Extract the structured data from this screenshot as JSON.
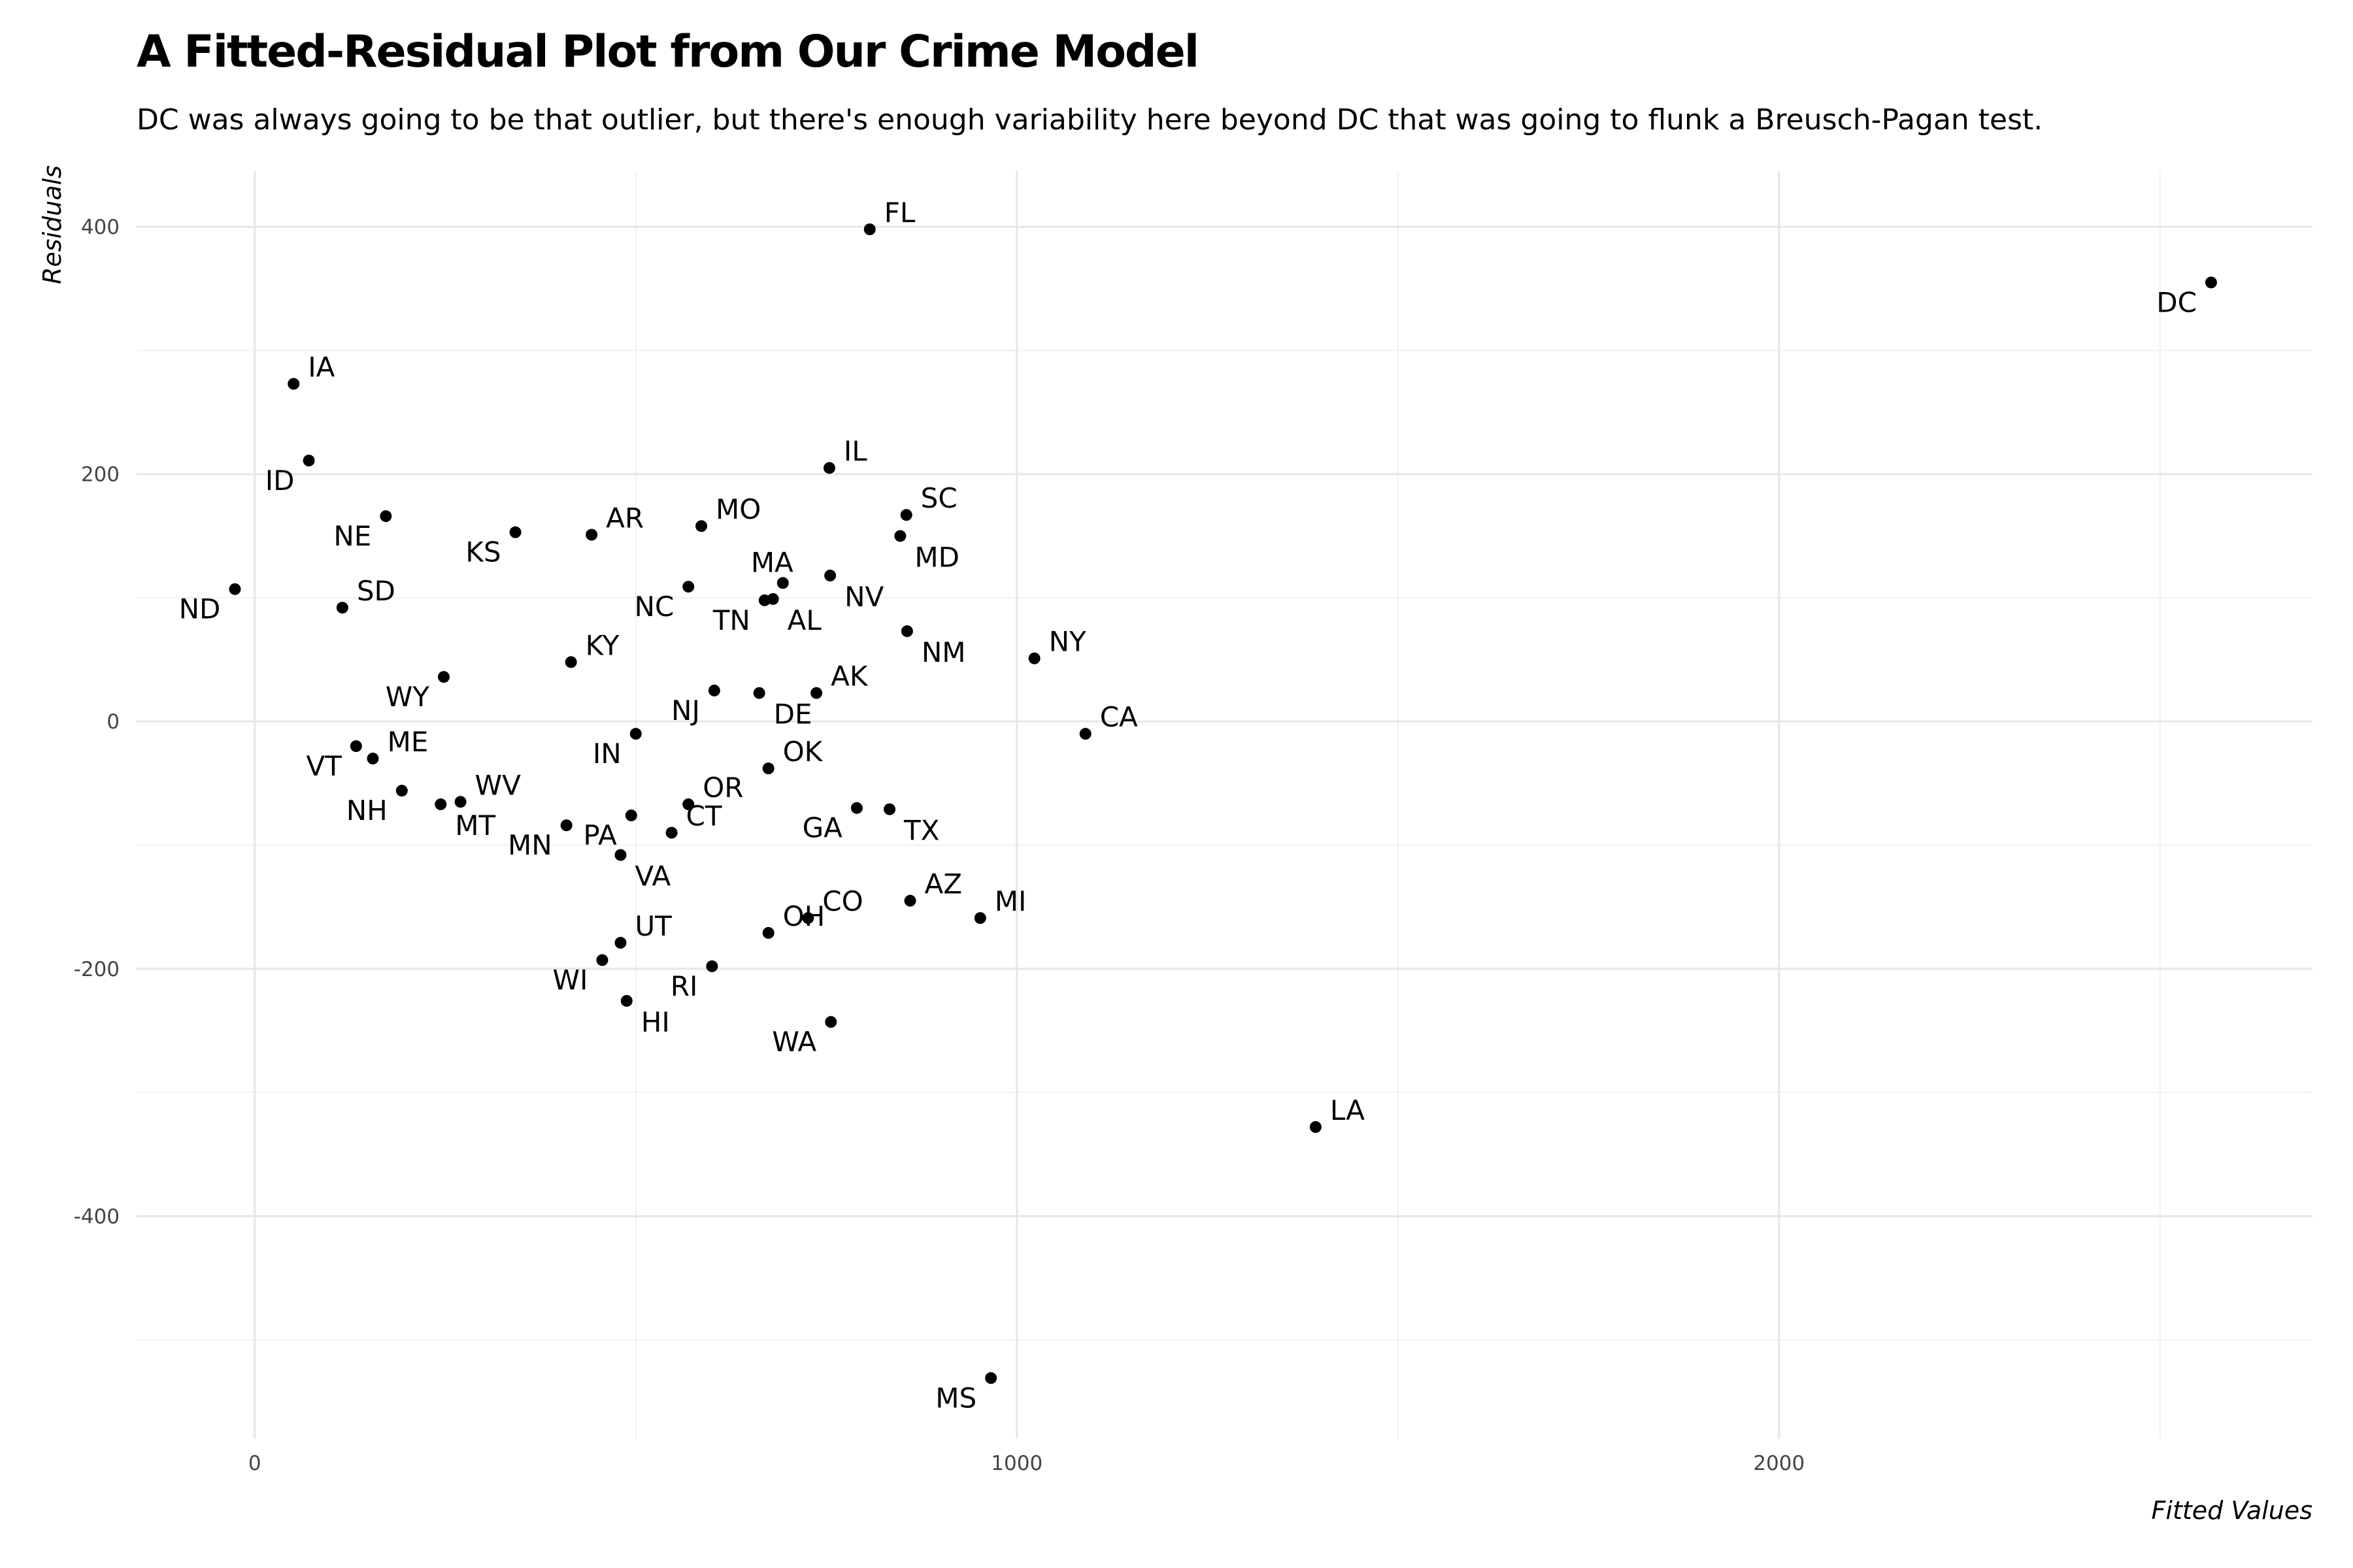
{
  "chart_data": {
    "type": "scatter",
    "title": "A Fitted-Residual Plot from Our Crime Model",
    "subtitle": "DC was always going to be that outlier, but there's enough variability here beyond DC that was going to flunk a Breusch-Pagan test.",
    "xlabel": "Fitted Values",
    "ylabel": "Residuals",
    "xlim": [
      -155,
      2700
    ],
    "ylim": [
      -580,
      445
    ],
    "x_ticks": [
      0,
      1000,
      2000
    ],
    "x_minor_ticks": [
      500,
      1500,
      2500
    ],
    "y_ticks": [
      400,
      200,
      0,
      -200,
      -400
    ],
    "y_minor_ticks": [
      300,
      100,
      -100,
      -300,
      -500
    ],
    "grid": true,
    "points": [
      {
        "label": "FL",
        "x": 807,
        "y": 398,
        "pos": "right"
      },
      {
        "label": "DC",
        "x": 2567,
        "y": 355,
        "pos": "left"
      },
      {
        "label": "IA",
        "x": 51,
        "y": 273,
        "pos": "right"
      },
      {
        "label": "ID",
        "x": 71,
        "y": 211,
        "pos": "left"
      },
      {
        "label": "IL",
        "x": 754,
        "y": 205,
        "pos": "right"
      },
      {
        "label": "SC",
        "x": 855,
        "y": 167,
        "pos": "right"
      },
      {
        "label": "NE",
        "x": 172,
        "y": 166,
        "pos": "left"
      },
      {
        "label": "MO",
        "x": 586,
        "y": 158,
        "pos": "right"
      },
      {
        "label": "KS",
        "x": 342,
        "y": 153,
        "pos": "left"
      },
      {
        "label": "AR",
        "x": 442,
        "y": 151,
        "pos": "right"
      },
      {
        "label": "MD",
        "x": 847,
        "y": 150,
        "pos": "below"
      },
      {
        "label": "MA",
        "x": 693,
        "y": 112,
        "pos": "above"
      },
      {
        "label": "NV",
        "x": 755,
        "y": 118,
        "pos": "below"
      },
      {
        "label": "NC",
        "x": 569,
        "y": 109,
        "pos": "left"
      },
      {
        "label": "ND",
        "x": -26,
        "y": 107,
        "pos": "left"
      },
      {
        "label": "TN",
        "x": 669,
        "y": 98,
        "pos": "left"
      },
      {
        "label": "AL",
        "x": 680,
        "y": 99,
        "pos": "below"
      },
      {
        "label": "SD",
        "x": 115,
        "y": 92,
        "pos": "right"
      },
      {
        "label": "NM",
        "x": 856,
        "y": 73,
        "pos": "below"
      },
      {
        "label": "NY",
        "x": 1023,
        "y": 51,
        "pos": "right"
      },
      {
        "label": "KY",
        "x": 415,
        "y": 48,
        "pos": "right"
      },
      {
        "label": "WY",
        "x": 248,
        "y": 36,
        "pos": "left"
      },
      {
        "label": "NJ",
        "x": 603,
        "y": 25,
        "pos": "left"
      },
      {
        "label": "DE",
        "x": 662,
        "y": 23,
        "pos": "below"
      },
      {
        "label": "AK",
        "x": 737,
        "y": 23,
        "pos": "right"
      },
      {
        "label": "CA",
        "x": 1090,
        "y": -10,
        "pos": "right"
      },
      {
        "label": "IN",
        "x": 500,
        "y": -10,
        "pos": "left"
      },
      {
        "label": "VT",
        "x": 133,
        "y": -20,
        "pos": "left"
      },
      {
        "label": "ME",
        "x": 155,
        "y": -30,
        "pos": "right"
      },
      {
        "label": "OK",
        "x": 674,
        "y": -38,
        "pos": "right"
      },
      {
        "label": "NH",
        "x": 193,
        "y": -56,
        "pos": "left"
      },
      {
        "label": "WV",
        "x": 270,
        "y": -65,
        "pos": "right"
      },
      {
        "label": "MT",
        "x": 244,
        "y": -67,
        "pos": "below"
      },
      {
        "label": "OR",
        "x": 569,
        "y": -67,
        "pos": "right"
      },
      {
        "label": "GA",
        "x": 790,
        "y": -70,
        "pos": "left"
      },
      {
        "label": "TX",
        "x": 833,
        "y": -71,
        "pos": "below"
      },
      {
        "label": "PA",
        "x": 494,
        "y": -76,
        "pos": "left"
      },
      {
        "label": "MN",
        "x": 409,
        "y": -84,
        "pos": "left"
      },
      {
        "label": "CT",
        "x": 547,
        "y": -90,
        "pos": "right"
      },
      {
        "label": "VA",
        "x": 480,
        "y": -108,
        "pos": "below"
      },
      {
        "label": "AZ",
        "x": 860,
        "y": -145,
        "pos": "right"
      },
      {
        "label": "CO",
        "x": 726,
        "y": -159,
        "pos": "right"
      },
      {
        "label": "MI",
        "x": 952,
        "y": -159,
        "pos": "right"
      },
      {
        "label": "OH",
        "x": 674,
        "y": -171,
        "pos": "right"
      },
      {
        "label": "UT",
        "x": 480,
        "y": -179,
        "pos": "right"
      },
      {
        "label": "WI",
        "x": 456,
        "y": -193,
        "pos": "left"
      },
      {
        "label": "RI",
        "x": 600,
        "y": -198,
        "pos": "left"
      },
      {
        "label": "HI",
        "x": 488,
        "y": -226,
        "pos": "below"
      },
      {
        "label": "WA",
        "x": 756,
        "y": -243,
        "pos": "left"
      },
      {
        "label": "LA",
        "x": 1392,
        "y": -328,
        "pos": "right"
      },
      {
        "label": "MS",
        "x": 966,
        "y": -531,
        "pos": "left"
      }
    ]
  }
}
